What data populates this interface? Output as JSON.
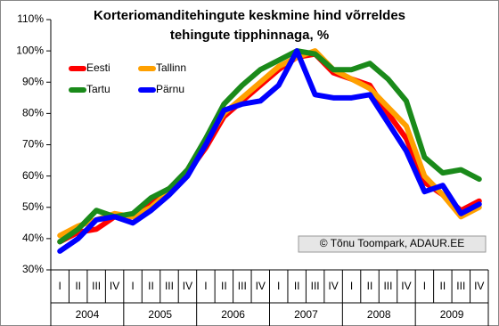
{
  "chart_data": {
    "type": "line",
    "title": [
      "Korteriomanditehingute keskmine hind võrreldes",
      "tehingute tipphinnaga, %"
    ],
    "categories": [
      "I",
      "II",
      "III",
      "IV",
      "I",
      "II",
      "III",
      "IV",
      "I",
      "II",
      "III",
      "IV",
      "I",
      "II",
      "III",
      "IV",
      "I",
      "II",
      "III",
      "IV",
      "I",
      "II",
      "III",
      "IV"
    ],
    "years": [
      "2004",
      "2005",
      "2006",
      "2007",
      "2008",
      "2009"
    ],
    "series": [
      {
        "name": "Eesti",
        "color": "#ff0000",
        "values": [
          39,
          42,
          43,
          47,
          47,
          51,
          56,
          61,
          69,
          79,
          84,
          89,
          94,
          98,
          99,
          93,
          91,
          89,
          80,
          72,
          58,
          54,
          49,
          52
        ]
      },
      {
        "name": "Tallinn",
        "color": "#ffa000",
        "values": [
          41,
          44,
          46,
          48,
          47,
          50,
          55,
          62,
          71,
          80,
          85,
          90,
          95,
          98,
          100,
          94,
          91,
          88,
          82,
          76,
          60,
          54,
          47,
          50
        ]
      },
      {
        "name": "Tartu",
        "color": "#1a8a1a",
        "values": [
          39,
          43,
          49,
          47,
          48,
          53,
          56,
          62,
          72,
          83,
          89,
          94,
          97,
          100,
          99,
          94,
          94,
          96,
          91,
          84,
          66,
          61,
          62,
          59
        ]
      },
      {
        "name": "Pärnu",
        "color": "#0000ff",
        "values": [
          36,
          40,
          46,
          47,
          45,
          49,
          54,
          60,
          70,
          81,
          83,
          84,
          89,
          100,
          86,
          85,
          85,
          86,
          77,
          68,
          55,
          57,
          48,
          51
        ]
      }
    ],
    "ylim": [
      30,
      110
    ],
    "yticks": [
      {
        "value": 30,
        "label": "30%"
      },
      {
        "value": 40,
        "label": "40%"
      },
      {
        "value": 50,
        "label": "50%"
      },
      {
        "value": 60,
        "label": "60%"
      },
      {
        "value": 70,
        "label": "70%"
      },
      {
        "value": 80,
        "label": "80%"
      },
      {
        "value": 90,
        "label": "90%"
      },
      {
        "value": 100,
        "label": "100%"
      },
      {
        "value": 110,
        "label": "110%"
      }
    ],
    "annotation": "© Tõnu Toompark, ADAUR.EE"
  }
}
